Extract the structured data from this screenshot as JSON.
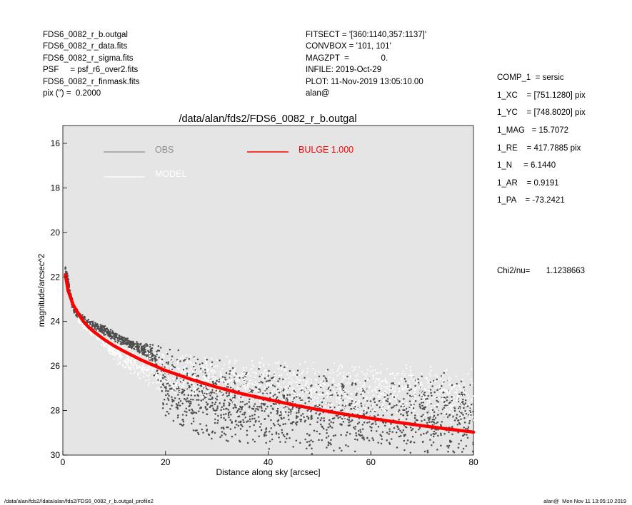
{
  "header": {
    "left_lines": [
      "FDS6_0082_r_b.outgal",
      "FDS6_0082_r_data.fits",
      "FDS6_0082_r_sigma.fits",
      "PSF     = psf_r6_over2.fits",
      "FDS6_0082_r_finmask.fits",
      "pix (\") =  0.2000"
    ],
    "mid_lines": [
      "FITSECT = '[360:1140,357:1137]'",
      "CONVBOX = '101, 101'",
      "MAGZPT  =              0.",
      "INFILE: 2019-Oct-29",
      "PLOT: 11-Nov-2019 13:05:10.00",
      "alan@"
    ],
    "right_lines": [
      "COMP_1  = sersic",
      "1_XC    = [751.1280] pix",
      "1_YC    = [748.8020] pix",
      "1_MAG   = 15.7072",
      "1_RE    = 417.7885 pix",
      "1_N     = 6.1440",
      "1_AR    = 0.9191",
      "1_PA    = -73.2421"
    ],
    "chi2": "Chi2/nu=       1.1238663"
  },
  "footer": {
    "left": "/data/alan/fds2//data/alan/fds2/FDS6_0082_r_b.outgal_profile2",
    "right": "alan@  Mon Nov 11 13:05:10 2019"
  },
  "colors": {
    "plot_bg": "#e5e5e5",
    "obs": "#4d4d4d",
    "model": "#ffffff",
    "bulge": "#ff0000"
  },
  "chart_data": {
    "type": "scatter",
    "title": "/data/alan/fds2/FDS6_0082_r_b.outgal",
    "xlabel": "Distance along sky [arcsec]",
    "ylabel": "magnitude/arcsec^2",
    "xlim": [
      0,
      80
    ],
    "ylim": [
      30,
      15.2
    ],
    "y_inverted": true,
    "xticks": [
      0,
      20,
      40,
      60,
      80
    ],
    "yticks": [
      16,
      18,
      20,
      22,
      24,
      26,
      28,
      30
    ],
    "grid": false,
    "legend": {
      "position": "top",
      "entries": [
        {
          "label": "OBS",
          "color": "#8c8c8c"
        },
        {
          "label": "MODEL",
          "color": "#ffffff"
        },
        {
          "label": "BULGE  1.000",
          "color": "#ff0000"
        }
      ]
    },
    "series": [
      {
        "name": "BULGE  1.000",
        "kind": "line",
        "x": [
          0.5,
          1,
          2,
          3,
          4,
          5,
          6,
          8,
          10,
          12,
          15,
          20,
          25,
          30,
          35,
          40,
          45,
          50,
          55,
          60,
          65,
          70,
          75,
          80
        ],
        "y": [
          21.9,
          22.6,
          23.25,
          23.65,
          24.0,
          24.25,
          24.45,
          24.8,
          25.1,
          25.35,
          25.7,
          26.2,
          26.6,
          26.95,
          27.25,
          27.5,
          27.75,
          27.97,
          28.17,
          28.35,
          28.52,
          28.68,
          28.83,
          28.97
        ]
      },
      {
        "name": "OBS",
        "kind": "points",
        "x": [
          0.5,
          1,
          1.5,
          2,
          3,
          4,
          5,
          6,
          8,
          10,
          12,
          14,
          15,
          17,
          20,
          25,
          30,
          35,
          40,
          45,
          50,
          55,
          60,
          65,
          70,
          75,
          80
        ],
        "y": [
          21.7,
          22.2,
          22.8,
          23.4,
          23.7,
          23.9,
          24.1,
          24.2,
          24.4,
          24.65,
          24.9,
          25.1,
          25.2,
          25.4,
          26.6,
          27.3,
          27.6,
          27.8,
          27.9,
          28.0,
          28.1,
          28.1,
          28.2,
          28.2,
          28.2,
          28.2,
          28.2
        ],
        "scatter_range": [
          0.3,
          0.3,
          0.3,
          0.3,
          0.25,
          0.25,
          0.25,
          0.25,
          0.25,
          0.25,
          0.25,
          0.25,
          0.3,
          0.4,
          1.8,
          2.0,
          2.0,
          2.0,
          2.0,
          2.0,
          2.0,
          2.0,
          2.0,
          2.0,
          2.0,
          2.0,
          2.0
        ]
      },
      {
        "name": "MODEL",
        "kind": "points",
        "x": [
          3,
          5,
          8,
          10,
          15,
          20,
          25,
          30,
          35,
          40,
          45,
          50,
          55,
          60,
          65,
          70,
          75,
          80
        ],
        "y": [
          23.9,
          24.3,
          24.9,
          25.3,
          26.0,
          26.3,
          26.5,
          26.6,
          26.75,
          26.9,
          27.0,
          27.1,
          27.15,
          27.2,
          27.25,
          27.3,
          27.35,
          27.4
        ],
        "scatter_range": [
          0.2,
          0.25,
          0.3,
          0.5,
          0.8,
          1.0,
          1.1,
          1.2,
          1.3,
          1.3,
          1.4,
          1.4,
          1.4,
          1.4,
          1.4,
          1.4,
          1.4,
          1.4
        ]
      }
    ]
  }
}
